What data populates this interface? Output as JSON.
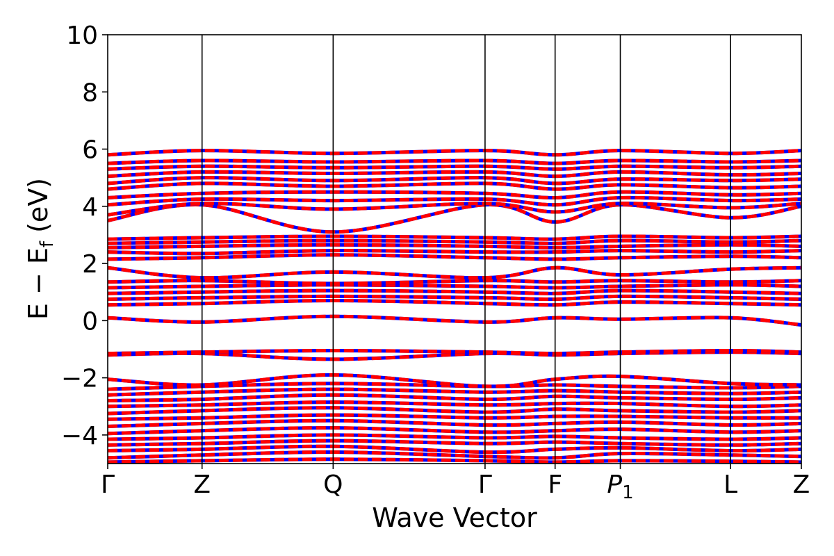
{
  "chart_data": {
    "type": "line",
    "title": "",
    "xlabel": "Wave Vector",
    "ylabel_parts": {
      "main": "E − E",
      "sub": "f",
      "tail": " (eV)"
    },
    "ylim": [
      -5,
      10
    ],
    "yticks": [
      -4,
      -2,
      0,
      2,
      4,
      6,
      8,
      10
    ],
    "ytick_labels": [
      "−4",
      "−2",
      "0",
      "2",
      "4",
      "6",
      "8",
      "10"
    ],
    "kpath": [
      {
        "label": "Γ",
        "x": 0.0
      },
      {
        "label": "Z",
        "x": 0.136
      },
      {
        "label": "Q",
        "x": 0.325
      },
      {
        "label": "Γ",
        "x": 0.544
      },
      {
        "label": "F",
        "x": 0.645
      },
      {
        "label": "P",
        "sub": "1",
        "italic": true,
        "x": 0.739
      },
      {
        "label": "L",
        "x": 0.898
      },
      {
        "label": "Z",
        "x": 1.0
      }
    ],
    "series": [
      {
        "color": "#0000ff",
        "style": "solid"
      },
      {
        "color": "#ff0000",
        "style": "dashed"
      }
    ],
    "bands": [
      [
        -4.95,
        -4.9,
        -4.85,
        -4.9,
        -4.95,
        -4.9,
        -4.92,
        -4.95
      ],
      [
        -4.8,
        -4.7,
        -4.6,
        -4.75,
        -4.8,
        -4.65,
        -4.7,
        -4.75
      ],
      [
        -4.55,
        -4.5,
        -4.4,
        -4.6,
        -4.5,
        -4.45,
        -4.55,
        -4.5
      ],
      [
        -4.35,
        -4.3,
        -4.2,
        -4.3,
        -4.25,
        -4.3,
        -4.35,
        -4.3
      ],
      [
        -4.15,
        -4.1,
        -4.0,
        -4.1,
        -4.05,
        -4.1,
        -4.15,
        -4.1
      ],
      [
        -3.95,
        -3.85,
        -3.75,
        -3.9,
        -3.85,
        -3.8,
        -3.9,
        -3.85
      ],
      [
        -3.7,
        -3.6,
        -3.5,
        -3.65,
        -3.6,
        -3.55,
        -3.65,
        -3.6
      ],
      [
        -3.45,
        -3.4,
        -3.3,
        -3.4,
        -3.35,
        -3.35,
        -3.4,
        -3.4
      ],
      [
        -3.25,
        -3.15,
        -3.05,
        -3.2,
        -3.1,
        -3.15,
        -3.2,
        -3.15
      ],
      [
        -3.0,
        -2.95,
        -2.85,
        -2.95,
        -2.9,
        -2.9,
        -3.0,
        -2.95
      ],
      [
        -2.8,
        -2.75,
        -2.6,
        -2.75,
        -2.65,
        -2.7,
        -2.75,
        -2.7
      ],
      [
        -2.6,
        -2.5,
        -2.4,
        -2.5,
        -2.45,
        -2.5,
        -2.55,
        -2.5
      ],
      [
        -2.4,
        -2.3,
        -2.2,
        -2.3,
        -2.25,
        -2.3,
        -2.35,
        -2.3
      ],
      [
        -2.05,
        -2.25,
        -1.9,
        -2.3,
        -2.05,
        -1.95,
        -2.2,
        -2.25
      ],
      [
        -1.2,
        -1.15,
        -1.35,
        -1.15,
        -1.2,
        -1.15,
        -1.1,
        -1.15
      ],
      [
        -1.15,
        -1.1,
        -1.05,
        -1.1,
        -1.15,
        -1.1,
        -1.05,
        -1.1
      ],
      [
        0.1,
        -0.05,
        0.15,
        -0.05,
        0.1,
        0.05,
        0.1,
        -0.15
      ],
      [
        0.55,
        0.6,
        0.7,
        0.6,
        0.55,
        0.65,
        0.6,
        0.55
      ],
      [
        0.75,
        0.8,
        0.85,
        0.8,
        0.75,
        0.85,
        0.8,
        0.75
      ],
      [
        0.95,
        1.0,
        1.05,
        1.0,
        0.95,
        1.05,
        1.0,
        0.95
      ],
      [
        1.15,
        1.2,
        1.25,
        1.2,
        1.15,
        1.2,
        1.25,
        1.2
      ],
      [
        1.35,
        1.4,
        1.3,
        1.4,
        1.35,
        1.4,
        1.35,
        1.4
      ],
      [
        1.85,
        1.5,
        1.7,
        1.5,
        1.85,
        1.6,
        1.8,
        1.85
      ],
      [
        2.15,
        2.2,
        2.3,
        2.2,
        2.15,
        2.2,
        2.25,
        2.2
      ],
      [
        2.4,
        2.35,
        2.45,
        2.4,
        2.4,
        2.45,
        2.4,
        2.45
      ],
      [
        2.55,
        2.6,
        2.65,
        2.6,
        2.55,
        2.6,
        2.65,
        2.6
      ],
      [
        2.7,
        2.75,
        2.8,
        2.75,
        2.7,
        2.8,
        2.75,
        2.8
      ],
      [
        2.85,
        2.9,
        2.95,
        2.9,
        2.85,
        2.95,
        2.9,
        2.95
      ],
      [
        3.5,
        4.05,
        3.1,
        4.05,
        3.45,
        4.05,
        3.6,
        4.0
      ],
      [
        3.7,
        4.1,
        3.9,
        4.1,
        3.8,
        4.1,
        3.95,
        4.1
      ],
      [
        4.05,
        4.25,
        4.2,
        4.25,
        4.05,
        4.3,
        4.2,
        4.25
      ],
      [
        4.3,
        4.45,
        4.5,
        4.45,
        4.3,
        4.5,
        4.4,
        4.45
      ],
      [
        4.6,
        4.8,
        4.7,
        4.8,
        4.6,
        4.75,
        4.65,
        4.7
      ],
      [
        4.8,
        5.0,
        4.9,
        5.0,
        4.8,
        4.95,
        4.9,
        4.95
      ],
      [
        5.05,
        5.2,
        5.15,
        5.2,
        5.05,
        5.2,
        5.1,
        5.15
      ],
      [
        5.3,
        5.4,
        5.35,
        5.4,
        5.3,
        5.4,
        5.35,
        5.4
      ],
      [
        5.5,
        5.6,
        5.55,
        5.6,
        5.5,
        5.6,
        5.55,
        5.6
      ],
      [
        5.8,
        5.95,
        5.85,
        5.95,
        5.8,
        5.95,
        5.85,
        5.95
      ]
    ]
  }
}
